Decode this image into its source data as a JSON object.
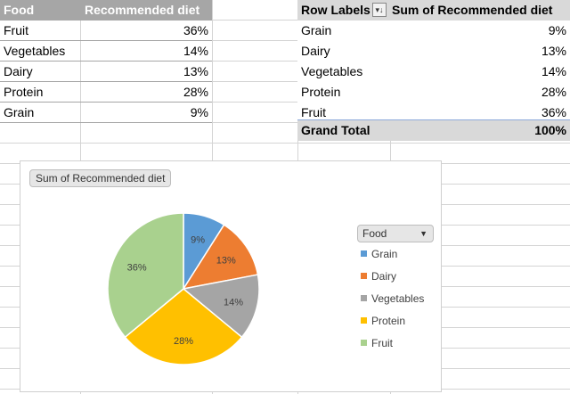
{
  "source_table": {
    "headers": [
      "Food",
      "Recommended diet"
    ],
    "rows": [
      {
        "food": "Fruit",
        "value": "36%"
      },
      {
        "food": "Vegetables",
        "value": "14%"
      },
      {
        "food": "Dairy",
        "value": "13%"
      },
      {
        "food": "Protein",
        "value": "28%"
      },
      {
        "food": "Grain",
        "value": "9%"
      }
    ]
  },
  "pivot_table": {
    "row_labels_header": "Row Labels",
    "filter_icon": "filter-sort-icon",
    "sum_header": "Sum of Recommended diet",
    "rows": [
      {
        "label": "Grain",
        "value": "9%"
      },
      {
        "label": "Dairy",
        "value": "13%"
      },
      {
        "label": "Vegetables",
        "value": "14%"
      },
      {
        "label": "Protein",
        "value": "28%"
      },
      {
        "label": "Fruit",
        "value": "36%"
      }
    ],
    "grand_total_label": "Grand Total",
    "grand_total_value": "100%"
  },
  "chart": {
    "field_button": "Sum of Recommended diet",
    "legend_field": "Food",
    "legend_arrow": "▼"
  },
  "chart_data": {
    "type": "pie",
    "categories": [
      "Grain",
      "Dairy",
      "Vegetables",
      "Protein",
      "Fruit"
    ],
    "values": [
      9,
      13,
      14,
      28,
      36
    ],
    "labels": [
      "9%",
      "13%",
      "14%",
      "28%",
      "36%"
    ],
    "colors": [
      "#5b9bd5",
      "#ed7d31",
      "#a5a5a5",
      "#ffc000",
      "#a9d18e"
    ],
    "legend_position": "right"
  }
}
